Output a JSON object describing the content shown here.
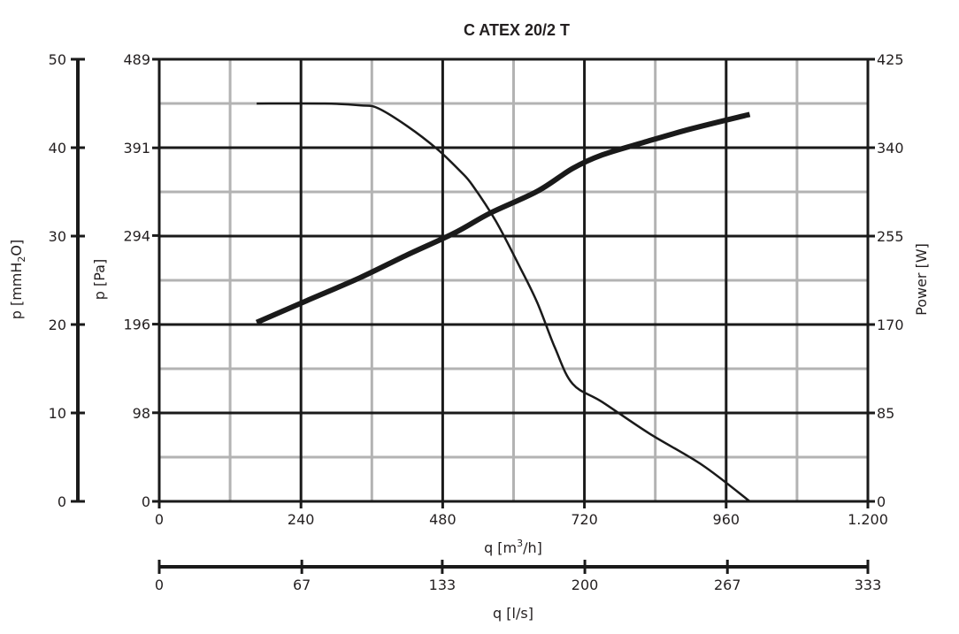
{
  "chart_data": {
    "type": "line",
    "title": "C ATEX 20/2 T",
    "grid": true,
    "legend": "none",
    "x_axis": {
      "label": "q [m³/h]",
      "label_main": "q [m",
      "label_sup": "3",
      "label_tail": "/h]",
      "range": [
        0,
        1200
      ],
      "ticks": [
        0,
        240,
        480,
        720,
        960,
        1200
      ],
      "tick_labels": [
        "0",
        "240",
        "480",
        "720",
        "960",
        "1.200"
      ]
    },
    "x2_axis": {
      "label": "q [l/s]",
      "range": [
        0,
        333
      ],
      "ticks": [
        0,
        67,
        133,
        200,
        267,
        333
      ],
      "tick_labels": [
        "0",
        "67",
        "133",
        "200",
        "267",
        "333"
      ]
    },
    "y_axis_pa": {
      "label": "p [Pa]",
      "range": [
        0,
        489
      ],
      "ticks": [
        0,
        98,
        196,
        294,
        391,
        489
      ],
      "tick_labels": [
        "0",
        "98",
        "196",
        "294",
        "391",
        "489"
      ]
    },
    "y_axis_mmh2o": {
      "label": "p [mmH₂O]",
      "label_main": "p [mmH",
      "label_sub": "2",
      "label_tail": "O]",
      "range": [
        0,
        50
      ],
      "ticks": [
        0,
        10,
        20,
        30,
        40,
        50
      ],
      "tick_labels": [
        "0",
        "10",
        "20",
        "30",
        "40",
        "50"
      ]
    },
    "y_axis_power": {
      "label": "Power [W]",
      "range": [
        0,
        425
      ],
      "ticks": [
        0,
        85,
        170,
        255,
        340,
        425
      ],
      "tick_labels": [
        "0",
        "85",
        "170",
        "255",
        "340",
        "425"
      ]
    },
    "series": [
      {
        "axis": "pressure_pa",
        "x": [
          165,
          280,
          340,
          370,
          420,
          470,
          510,
          530,
          570,
          610,
          640,
          670,
          700,
          750,
          830,
          920,
          1000
        ],
        "y": [
          440,
          440,
          438,
          435,
          415,
          390,
          365,
          350,
          310,
          260,
          220,
          170,
          130,
          110,
          75,
          40,
          0
        ]
      },
      {
        "axis": "power_w",
        "x": [
          165,
          250,
          340,
          420,
          500,
          560,
          640,
          700,
          750,
          820,
          900,
          1000
        ],
        "y": [
          172,
          193,
          215,
          237,
          258,
          277,
          298,
          320,
          333,
          345,
          358,
          372
        ]
      }
    ]
  }
}
